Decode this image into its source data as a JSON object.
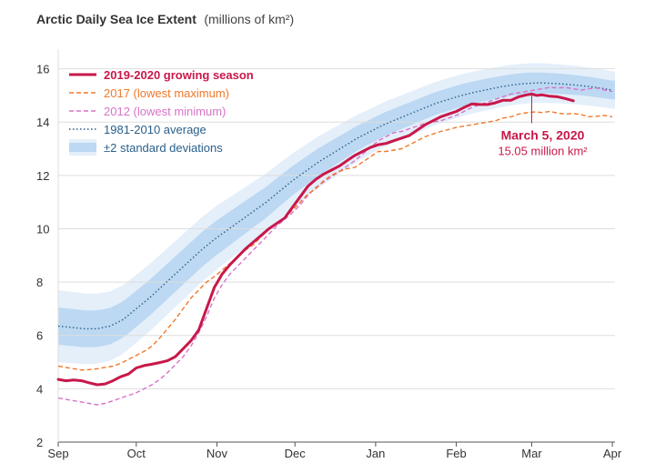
{
  "chart_data": {
    "type": "line",
    "title": "Arctic Daily Sea Ice Extent",
    "title_unit": "(millions of km²)",
    "ylim": [
      2,
      16.6
    ],
    "y_ticks": [
      "2",
      "4",
      "6",
      "8",
      "10",
      "12",
      "14",
      "16"
    ],
    "x_tick_labels": [
      "Sep",
      "Oct",
      "Nov",
      "Dec",
      "Jan",
      "Feb",
      "Mar",
      "Apr"
    ],
    "x_tick_days": [
      0,
      30,
      61,
      91,
      122,
      153,
      182,
      213
    ],
    "grid": "horizontal",
    "legend": {
      "placement": "top-left",
      "entries": [
        {
          "label": "2019-2020 growing season",
          "style": "solid-thick",
          "color": "#c8184a"
        },
        {
          "label": "2017 (lowest maximum)",
          "style": "dashed",
          "color": "#f0782a"
        },
        {
          "label": "2012 (lowest minimum)",
          "style": "dashed",
          "color": "#d873c8"
        },
        {
          "label": "1981-2010 average",
          "style": "dotted",
          "color": "#2a5f8a"
        },
        {
          "label": "±2 standard deviations",
          "style": "band",
          "color": "#bcd8f2"
        }
      ]
    },
    "series": [
      {
        "name": "2019-2020 growing season",
        "color": "#c8184a",
        "points": [
          [
            0,
            4.35
          ],
          [
            3,
            4.3
          ],
          [
            6,
            4.33
          ],
          [
            9,
            4.3
          ],
          [
            12,
            4.22
          ],
          [
            15,
            4.15
          ],
          [
            18,
            4.18
          ],
          [
            21,
            4.3
          ],
          [
            24,
            4.45
          ],
          [
            27,
            4.55
          ],
          [
            30,
            4.78
          ],
          [
            33,
            4.87
          ],
          [
            36,
            4.92
          ],
          [
            39,
            4.98
          ],
          [
            42,
            5.05
          ],
          [
            45,
            5.2
          ],
          [
            48,
            5.5
          ],
          [
            51,
            5.8
          ],
          [
            54,
            6.2
          ],
          [
            57,
            7.0
          ],
          [
            60,
            7.8
          ],
          [
            63,
            8.3
          ],
          [
            66,
            8.65
          ],
          [
            69,
            8.95
          ],
          [
            72,
            9.25
          ],
          [
            75,
            9.5
          ],
          [
            78,
            9.75
          ],
          [
            81,
            10.0
          ],
          [
            84,
            10.2
          ],
          [
            87,
            10.4
          ],
          [
            90,
            10.8
          ],
          [
            93,
            11.2
          ],
          [
            96,
            11.6
          ],
          [
            99,
            11.85
          ],
          [
            102,
            12.05
          ],
          [
            105,
            12.2
          ],
          [
            108,
            12.35
          ],
          [
            111,
            12.55
          ],
          [
            114,
            12.75
          ],
          [
            117,
            12.9
          ],
          [
            120,
            13.05
          ],
          [
            123,
            13.15
          ],
          [
            126,
            13.2
          ],
          [
            129,
            13.3
          ],
          [
            132,
            13.4
          ],
          [
            135,
            13.5
          ],
          [
            138,
            13.7
          ],
          [
            141,
            13.9
          ],
          [
            144,
            14.05
          ],
          [
            147,
            14.2
          ],
          [
            150,
            14.3
          ],
          [
            153,
            14.4
          ],
          [
            156,
            14.55
          ],
          [
            159,
            14.68
          ],
          [
            162,
            14.66
          ],
          [
            165,
            14.66
          ],
          [
            168,
            14.72
          ],
          [
            171,
            14.82
          ],
          [
            174,
            14.82
          ],
          [
            177,
            14.95
          ],
          [
            180,
            15.02
          ],
          [
            182,
            15.05
          ],
          [
            184,
            15.0
          ],
          [
            186,
            15.02
          ],
          [
            189,
            14.97
          ],
          [
            192,
            14.95
          ],
          [
            195,
            14.88
          ],
          [
            198,
            14.8
          ]
        ]
      },
      {
        "name": "2017 (lowest maximum)",
        "color": "#f0782a",
        "points": [
          [
            0,
            4.85
          ],
          [
            3,
            4.8
          ],
          [
            6,
            4.75
          ],
          [
            9,
            4.7
          ],
          [
            12,
            4.72
          ],
          [
            15,
            4.75
          ],
          [
            18,
            4.8
          ],
          [
            21,
            4.85
          ],
          [
            24,
            4.95
          ],
          [
            27,
            5.1
          ],
          [
            30,
            5.25
          ],
          [
            33,
            5.4
          ],
          [
            36,
            5.6
          ],
          [
            39,
            5.9
          ],
          [
            42,
            6.25
          ],
          [
            45,
            6.6
          ],
          [
            48,
            7.0
          ],
          [
            51,
            7.4
          ],
          [
            54,
            7.7
          ],
          [
            57,
            8.0
          ],
          [
            60,
            8.2
          ],
          [
            63,
            8.45
          ],
          [
            66,
            8.7
          ],
          [
            69,
            8.95
          ],
          [
            72,
            9.2
          ],
          [
            75,
            9.4
          ],
          [
            78,
            9.7
          ],
          [
            81,
            10.0
          ],
          [
            84,
            10.2
          ],
          [
            87,
            10.4
          ],
          [
            90,
            10.7
          ],
          [
            93,
            11.0
          ],
          [
            96,
            11.3
          ],
          [
            99,
            11.5
          ],
          [
            102,
            11.8
          ],
          [
            105,
            12.0
          ],
          [
            108,
            12.15
          ],
          [
            111,
            12.25
          ],
          [
            114,
            12.3
          ],
          [
            117,
            12.5
          ],
          [
            120,
            12.7
          ],
          [
            123,
            12.9
          ],
          [
            126,
            12.9
          ],
          [
            129,
            12.95
          ],
          [
            132,
            13.0
          ],
          [
            135,
            13.15
          ],
          [
            138,
            13.3
          ],
          [
            141,
            13.45
          ],
          [
            144,
            13.55
          ],
          [
            147,
            13.65
          ],
          [
            150,
            13.72
          ],
          [
            153,
            13.8
          ],
          [
            156,
            13.85
          ],
          [
            159,
            13.9
          ],
          [
            162,
            13.95
          ],
          [
            165,
            14.0
          ],
          [
            168,
            14.05
          ],
          [
            171,
            14.15
          ],
          [
            174,
            14.2
          ],
          [
            177,
            14.3
          ],
          [
            180,
            14.35
          ],
          [
            183,
            14.38
          ],
          [
            186,
            14.36
          ],
          [
            189,
            14.4
          ],
          [
            192,
            14.34
          ],
          [
            195,
            14.3
          ],
          [
            198,
            14.32
          ],
          [
            201,
            14.28
          ],
          [
            204,
            14.2
          ],
          [
            207,
            14.22
          ],
          [
            210,
            14.25
          ],
          [
            213,
            14.2
          ]
        ]
      },
      {
        "name": "2012 (lowest minimum)",
        "color": "#d873c8",
        "points": [
          [
            0,
            3.65
          ],
          [
            3,
            3.6
          ],
          [
            6,
            3.55
          ],
          [
            9,
            3.5
          ],
          [
            12,
            3.45
          ],
          [
            15,
            3.4
          ],
          [
            18,
            3.45
          ],
          [
            21,
            3.55
          ],
          [
            24,
            3.65
          ],
          [
            27,
            3.75
          ],
          [
            30,
            3.85
          ],
          [
            33,
            4.0
          ],
          [
            36,
            4.15
          ],
          [
            39,
            4.35
          ],
          [
            42,
            4.6
          ],
          [
            45,
            4.9
          ],
          [
            48,
            5.2
          ],
          [
            51,
            5.6
          ],
          [
            54,
            6.1
          ],
          [
            57,
            6.7
          ],
          [
            60,
            7.4
          ],
          [
            63,
            7.9
          ],
          [
            66,
            8.3
          ],
          [
            69,
            8.6
          ],
          [
            72,
            8.9
          ],
          [
            75,
            9.2
          ],
          [
            78,
            9.5
          ],
          [
            81,
            9.8
          ],
          [
            84,
            10.1
          ],
          [
            87,
            10.35
          ],
          [
            90,
            10.6
          ],
          [
            93,
            10.9
          ],
          [
            96,
            11.25
          ],
          [
            99,
            11.55
          ],
          [
            102,
            11.75
          ],
          [
            105,
            11.95
          ],
          [
            108,
            12.15
          ],
          [
            111,
            12.35
          ],
          [
            114,
            12.55
          ],
          [
            117,
            12.8
          ],
          [
            120,
            13.05
          ],
          [
            123,
            13.3
          ],
          [
            126,
            13.45
          ],
          [
            129,
            13.6
          ],
          [
            132,
            13.65
          ],
          [
            135,
            13.75
          ],
          [
            138,
            13.85
          ],
          [
            141,
            13.95
          ],
          [
            144,
            14.0
          ],
          [
            147,
            14.05
          ],
          [
            150,
            14.15
          ],
          [
            153,
            14.25
          ],
          [
            156,
            14.4
          ],
          [
            159,
            14.55
          ],
          [
            162,
            14.65
          ],
          [
            165,
            14.75
          ],
          [
            168,
            14.85
          ],
          [
            171,
            14.95
          ],
          [
            174,
            15.05
          ],
          [
            177,
            15.1
          ],
          [
            180,
            15.15
          ],
          [
            183,
            15.2
          ],
          [
            186,
            15.25
          ],
          [
            189,
            15.3
          ],
          [
            192,
            15.28
          ],
          [
            195,
            15.3
          ],
          [
            198,
            15.25
          ],
          [
            201,
            15.2
          ],
          [
            204,
            15.25
          ],
          [
            207,
            15.28
          ],
          [
            210,
            15.2
          ],
          [
            213,
            15.15
          ]
        ]
      },
      {
        "name": "1981-2010 average",
        "color": "#2a5f8a",
        "points": [
          [
            0,
            6.35
          ],
          [
            5,
            6.3
          ],
          [
            10,
            6.25
          ],
          [
            15,
            6.25
          ],
          [
            20,
            6.35
          ],
          [
            25,
            6.6
          ],
          [
            30,
            7.0
          ],
          [
            35,
            7.4
          ],
          [
            40,
            7.85
          ],
          [
            45,
            8.3
          ],
          [
            50,
            8.75
          ],
          [
            55,
            9.2
          ],
          [
            60,
            9.6
          ],
          [
            65,
            9.95
          ],
          [
            70,
            10.3
          ],
          [
            75,
            10.65
          ],
          [
            80,
            11.0
          ],
          [
            85,
            11.4
          ],
          [
            90,
            11.8
          ],
          [
            95,
            12.15
          ],
          [
            100,
            12.5
          ],
          [
            105,
            12.8
          ],
          [
            110,
            13.1
          ],
          [
            115,
            13.4
          ],
          [
            120,
            13.65
          ],
          [
            125,
            13.9
          ],
          [
            130,
            14.1
          ],
          [
            135,
            14.3
          ],
          [
            140,
            14.5
          ],
          [
            145,
            14.7
          ],
          [
            150,
            14.85
          ],
          [
            155,
            15.0
          ],
          [
            160,
            15.12
          ],
          [
            165,
            15.22
          ],
          [
            170,
            15.32
          ],
          [
            175,
            15.4
          ],
          [
            180,
            15.45
          ],
          [
            185,
            15.47
          ],
          [
            190,
            15.45
          ],
          [
            195,
            15.42
          ],
          [
            200,
            15.38
          ],
          [
            205,
            15.32
          ],
          [
            210,
            15.25
          ],
          [
            213,
            15.2
          ]
        ]
      }
    ],
    "std_band": {
      "name": "±2 standard deviations",
      "inner_color": "#bcd8f2",
      "outer_color": "#e4effa",
      "inner_half_width": [
        [
          0,
          0.7
        ],
        [
          60,
          0.65
        ],
        [
          120,
          0.45
        ],
        [
          180,
          0.4
        ],
        [
          213,
          0.35
        ]
      ],
      "outer_half_width": [
        [
          0,
          1.35
        ],
        [
          60,
          1.2
        ],
        [
          120,
          0.85
        ],
        [
          180,
          0.75
        ],
        [
          213,
          0.7
        ]
      ]
    },
    "annotation": {
      "title": "March 5, 2020",
      "subtitle": "15.05 million km²",
      "color": "#c8184a",
      "x": 182,
      "y": 15.05
    }
  }
}
